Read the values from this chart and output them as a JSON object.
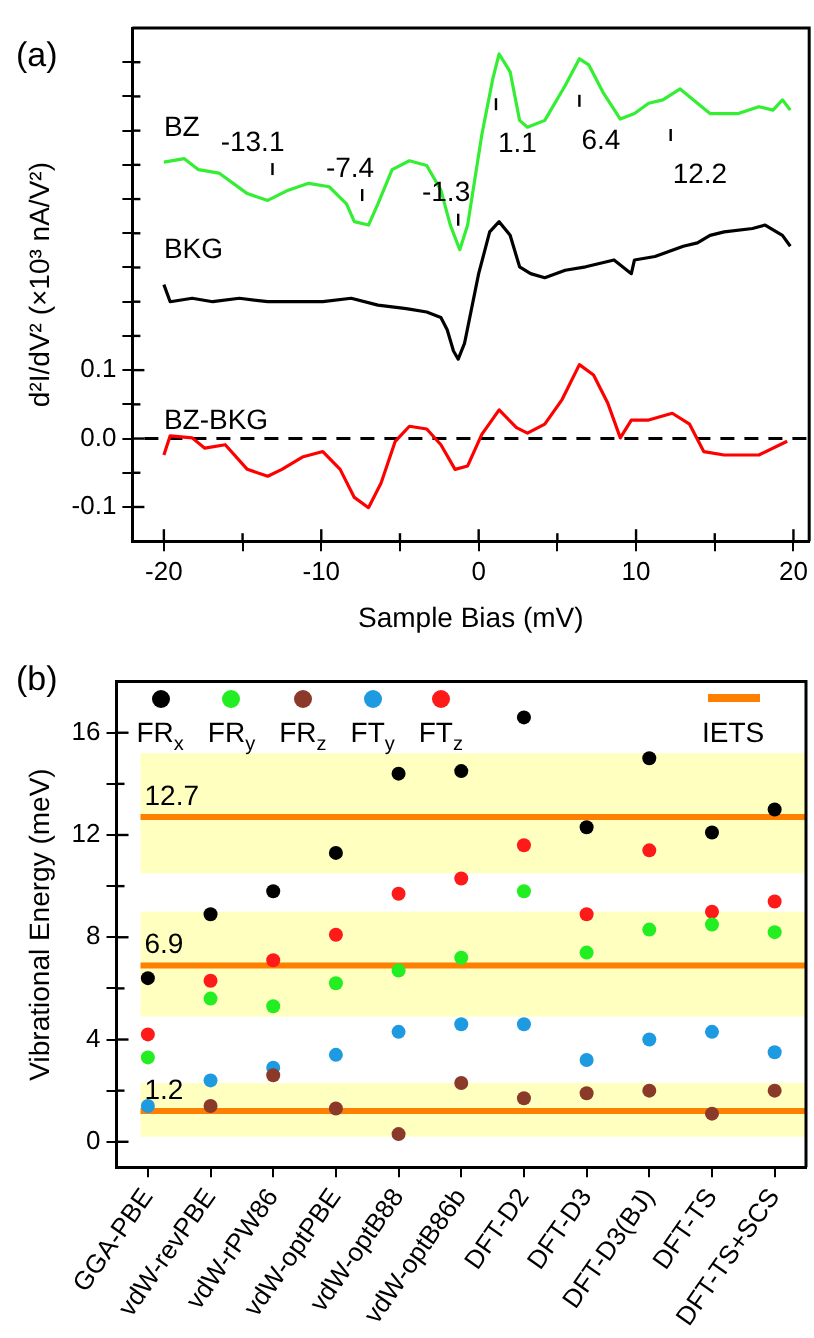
{
  "chart_data": [
    {
      "type": "line",
      "title": "(a)",
      "xlabel": "Sample Bias (mV)",
      "ylabel": "d²I/dV² (×10³ nA/V²)",
      "xlim": [
        -22,
        21
      ],
      "xticks": [
        -20,
        {
          "value": -15,
          "label": null
        },
        -10,
        {
          "value": -5,
          "label": null
        },
        0,
        {
          "value": 5,
          "label": null
        },
        10,
        {
          "value": 15,
          "label": null
        },
        20
      ],
      "ylim": [
        -0.15,
        0.6
      ],
      "yticks": [
        -0.1,
        {
          "value": -0.05,
          "label": null
        },
        {
          "value": 0,
          "label": "0.0"
        },
        {
          "value": 0.05,
          "label": null
        },
        0.1,
        {
          "value": 0.15,
          "label": null
        },
        {
          "value": 0.2,
          "label": null
        },
        {
          "value": 0.25,
          "label": null
        },
        {
          "value": 0.3,
          "label": null
        },
        {
          "value": 0.35,
          "label": null
        },
        {
          "value": 0.4,
          "label": null
        },
        {
          "value": 0.45,
          "label": null
        },
        {
          "value": 0.5,
          "label": null
        },
        {
          "value": 0.55,
          "label": null
        }
      ],
      "marker": "none",
      "grid": false,
      "legend": false,
      "series": [
        {
          "name": "BZ",
          "color": "#33ee33",
          "x": [
            -20.0,
            -18.7,
            -17.8,
            -16.5,
            -14.7,
            -13.4,
            -12.1,
            -10.8,
            -9.5,
            -8.4,
            -7.9,
            -7.0,
            -6.4,
            -5.5,
            -4.4,
            -3.3,
            -2.4,
            -1.8,
            -1.2,
            -0.7,
            0.2,
            0.9,
            1.3,
            2.0,
            2.6,
            3.1,
            4.2,
            5.5,
            6.4,
            7.0,
            7.9,
            9.0,
            9.9,
            10.8,
            11.7,
            12.8,
            13.9,
            14.7,
            16.5,
            17.8,
            18.7,
            19.3,
            19.8
          ],
          "values": [
            0.404,
            0.409,
            0.393,
            0.388,
            0.358,
            0.348,
            0.363,
            0.373,
            0.368,
            0.343,
            0.317,
            0.312,
            0.343,
            0.393,
            0.406,
            0.399,
            0.363,
            0.312,
            0.276,
            0.312,
            0.444,
            0.526,
            0.562,
            0.536,
            0.465,
            0.455,
            0.465,
            0.516,
            0.555,
            0.546,
            0.506,
            0.467,
            0.475,
            0.49,
            0.495,
            0.511,
            0.49,
            0.475,
            0.475,
            0.485,
            0.48,
            0.495,
            0.48
          ]
        },
        {
          "name": "BKG",
          "color": "#000000",
          "x": [
            -20.0,
            -19.6,
            -18.2,
            -16.9,
            -15.2,
            -13.4,
            -11.7,
            -9.9,
            -8.1,
            -6.4,
            -4.6,
            -3.3,
            -2.4,
            -2.0,
            -1.6,
            -1.3,
            -0.9,
            0.0,
            0.7,
            1.3,
            2.0,
            2.6,
            3.3,
            4.2,
            5.5,
            6.8,
            8.6,
            9.7,
            9.9,
            11.2,
            13.0,
            13.9,
            14.7,
            15.6,
            17.4,
            18.2,
            19.3,
            19.8
          ],
          "values": [
            0.225,
            0.2,
            0.205,
            0.2,
            0.205,
            0.2,
            0.2,
            0.2,
            0.205,
            0.195,
            0.19,
            0.185,
            0.177,
            0.159,
            0.128,
            0.116,
            0.139,
            0.241,
            0.302,
            0.317,
            0.297,
            0.251,
            0.241,
            0.235,
            0.246,
            0.251,
            0.261,
            0.241,
            0.261,
            0.266,
            0.281,
            0.286,
            0.297,
            0.302,
            0.307,
            0.312,
            0.297,
            0.281
          ]
        },
        {
          "name": "BZ-BKG",
          "color": "#ff0000",
          "x": [
            -20.0,
            -19.6,
            -18.2,
            -17.4,
            -16.1,
            -14.7,
            -13.4,
            -12.5,
            -11.2,
            -9.9,
            -8.8,
            -7.9,
            -7.0,
            -6.2,
            -5.3,
            -4.4,
            -3.3,
            -2.4,
            -1.5,
            -0.7,
            0.2,
            1.3,
            2.4,
            3.1,
            4.2,
            5.3,
            6.4,
            7.3,
            8.2,
            9.0,
            9.7,
            10.8,
            12.3,
            13.4,
            14.3,
            15.6,
            17.8,
            19.6
          ],
          "values": [
            -0.024,
            0.004,
            0.001,
            -0.014,
            -0.009,
            -0.045,
            -0.055,
            -0.045,
            -0.027,
            -0.019,
            -0.045,
            -0.086,
            -0.101,
            -0.065,
            -0.004,
            0.018,
            0.014,
            -0.009,
            -0.045,
            -0.04,
            0.006,
            0.042,
            0.016,
            0.008,
            0.021,
            0.057,
            0.108,
            0.093,
            0.052,
            0.001,
            0.027,
            0.027,
            0.037,
            0.021,
            -0.019,
            -0.024,
            -0.024,
            -0.004
          ]
        }
      ],
      "ref_lines": [
        {
          "axis": "y",
          "value": 0,
          "color": "#000000",
          "line_style": "dashed"
        }
      ],
      "annotations": [
        {
          "text": "-13.1",
          "x": -13.1,
          "y": 0.35
        },
        {
          "text": "-7.4",
          "x": -7.4,
          "y": 0.312
        },
        {
          "text": "-1.3",
          "x": -1.3,
          "y": 0.276
        },
        {
          "text": "1.1",
          "x": 1.1,
          "y": 0.55
        },
        {
          "text": "6.4",
          "x": 6.4,
          "y": 0.555
        },
        {
          "text": "12.2",
          "x": 12.2,
          "y": 0.505
        }
      ]
    },
    {
      "type": "scatter",
      "title": "(b)",
      "ylabel": "Vibrational Energy (meV)",
      "categories": [
        "GGA-PBE",
        "vdW-revPBE",
        "vdW-rPW86",
        "vdW-optPBE",
        "vdW-optB88",
        "vdW-optB86b",
        "DFT-D2",
        "DFT-D3",
        "DFT-D3(BJ)",
        "DFT-TS",
        "DFT-TS+SCS"
      ],
      "ylim": [
        -1,
        18
      ],
      "yticks": [
        0,
        {
          "value": 2,
          "label": null
        },
        4,
        {
          "value": 6,
          "label": null
        },
        8,
        {
          "value": 10,
          "label": null
        },
        12,
        {
          "value": 14,
          "label": null
        },
        16
      ],
      "marker": "circle",
      "legend": "top",
      "grid": false,
      "series": [
        {
          "name": "FR$_{x}$",
          "color": "#000000",
          "values": [
            6.4,
            8.9,
            9.8,
            11.3,
            14.4,
            14.5,
            16.6,
            12.3,
            15.0,
            12.1,
            13.0
          ]
        },
        {
          "name": "FR$_{y}$",
          "color": "#22ee22",
          "values": [
            3.3,
            5.6,
            5.3,
            6.2,
            6.7,
            7.2,
            9.8,
            7.4,
            8.3,
            8.5,
            8.2
          ]
        },
        {
          "name": "FR$_{z}$",
          "color": "#8b3a2a",
          "values": [
            null,
            1.4,
            2.6,
            1.3,
            0.3,
            2.3,
            1.7,
            1.9,
            2.0,
            1.1,
            2.0
          ]
        },
        {
          "name": "FT$_{y}$",
          "color": "#1e9be0",
          "values": [
            1.4,
            2.4,
            2.9,
            3.4,
            4.3,
            4.6,
            4.6,
            3.2,
            4.0,
            4.3,
            3.5
          ]
        },
        {
          "name": "FT$_{z}$",
          "color": "#ff1a1a",
          "values": [
            4.2,
            6.3,
            7.1,
            8.1,
            9.7,
            10.3,
            11.6,
            8.9,
            11.4,
            9.0,
            9.4
          ]
        }
      ],
      "bands": [
        {
          "axis": "y",
          "from": 10.5,
          "to": 15.2,
          "color": "#ffffc0"
        },
        {
          "axis": "y",
          "from": 4.9,
          "to": 9.0,
          "color": "#ffffc0"
        },
        {
          "axis": "y",
          "from": 0.2,
          "to": 2.3,
          "color": "#ffffc0"
        }
      ],
      "ref_lines": [
        {
          "axis": "y",
          "value": 12.7,
          "label": "12.7",
          "color": "#ff7f00"
        },
        {
          "axis": "y",
          "value": 6.9,
          "label": "6.9",
          "color": "#ff7f00"
        },
        {
          "axis": "y",
          "value": 1.2,
          "label": "1.2",
          "color": "#ff7f00"
        }
      ],
      "annotations": [
        "IETS"
      ]
    }
  ]
}
